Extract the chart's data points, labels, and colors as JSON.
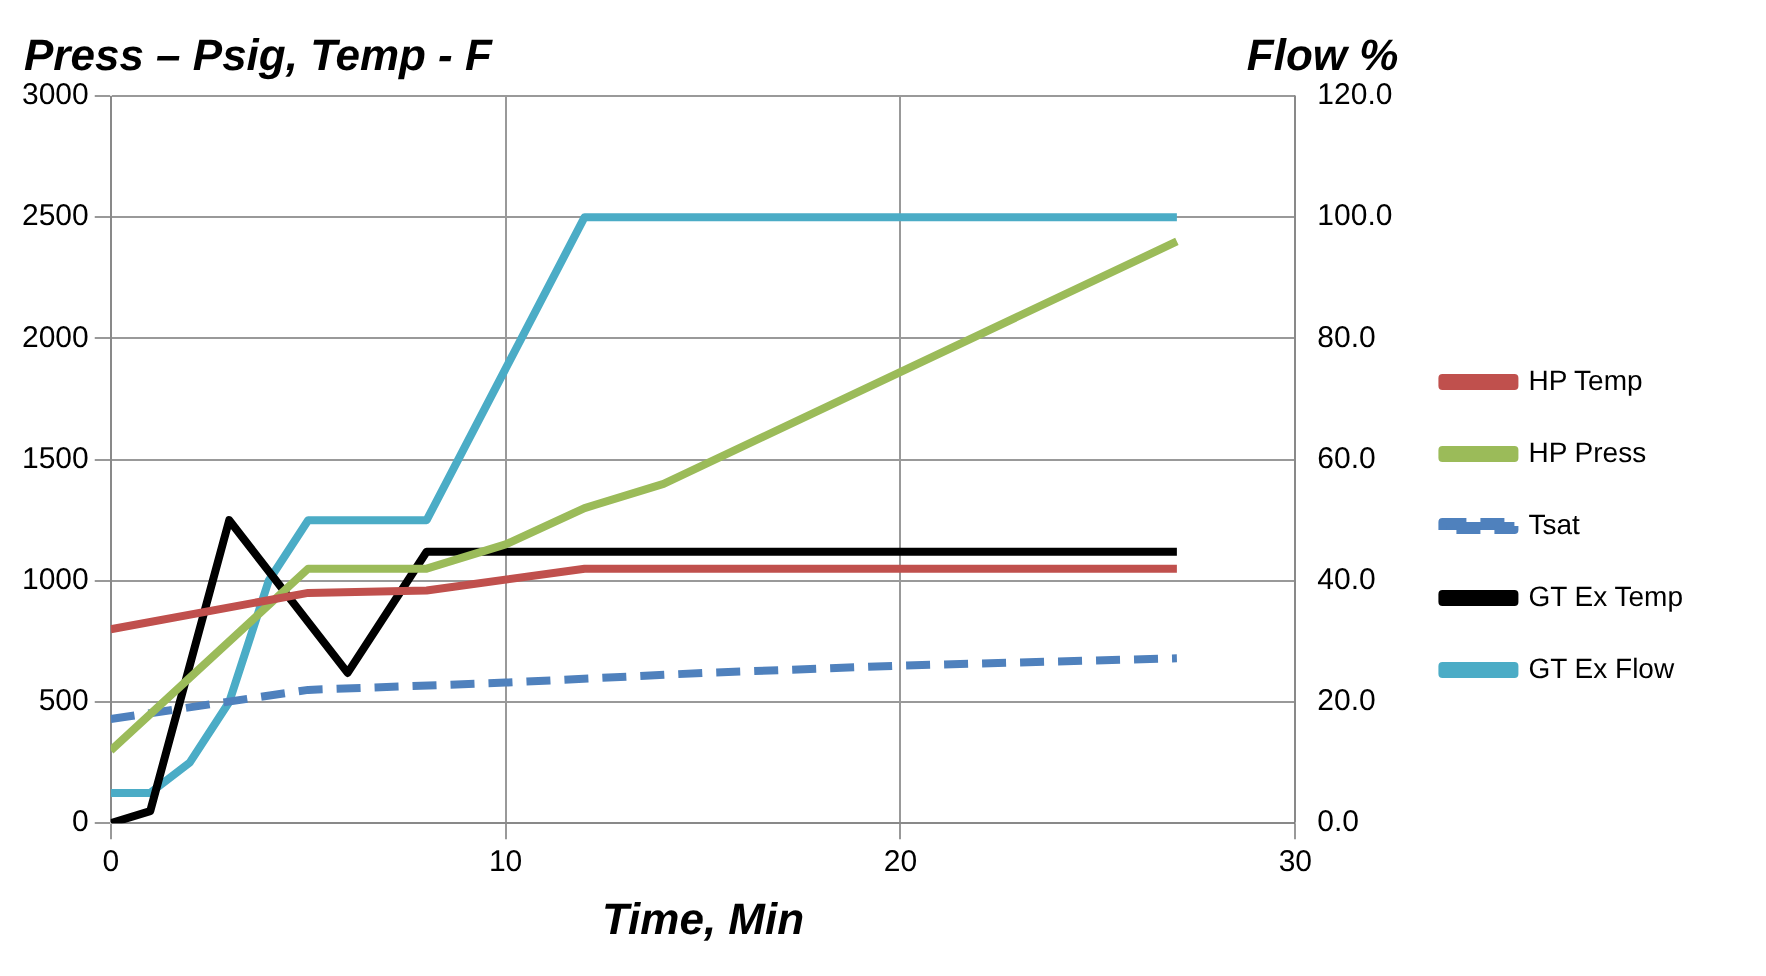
{
  "chart_data": {
    "type": "line",
    "xlabel": "Time, Min",
    "ylabel": "Press – Psig, Temp - F",
    "y2label": "Flow %",
    "xlim": [
      0,
      30
    ],
    "xticks": [
      0,
      10,
      20,
      30
    ],
    "ylim": [
      0,
      3000
    ],
    "yticks": [
      0,
      500,
      1000,
      1500,
      2000,
      2500,
      3000
    ],
    "y2lim": [
      0,
      120
    ],
    "y2ticks": [
      {
        "value": 0,
        "label": "0.0"
      },
      {
        "value": 20,
        "label": "20.0"
      },
      {
        "value": 40,
        "label": "40.0"
      },
      {
        "value": 60,
        "label": "60.0"
      },
      {
        "value": 80,
        "label": "80.0"
      },
      {
        "value": 100,
        "label": "100.0"
      },
      {
        "value": 120,
        "label": "120.0"
      }
    ],
    "grid": true,
    "legend": "right",
    "marker": "none",
    "series": [
      {
        "name": "HP Temp",
        "color": "#c0504d",
        "x": [
          0,
          5,
          8,
          12,
          27
        ],
        "values": [
          800,
          950,
          960,
          1050,
          1050
        ]
      },
      {
        "name": "HP Press",
        "color": "#9bbb59",
        "x": [
          0,
          5,
          8,
          10,
          12,
          14,
          27
        ],
        "values": [
          300,
          1050,
          1050,
          1150,
          1300,
          1400,
          2400
        ]
      },
      {
        "name": "Tsat",
        "color": "#4f81bd",
        "line_style": "dashed",
        "x": [
          0,
          5,
          10,
          15,
          20,
          27
        ],
        "values": [
          430,
          550,
          580,
          620,
          650,
          680
        ]
      },
      {
        "name": "GT Ex Temp",
        "color": "#000000",
        "x": [
          0,
          1,
          2,
          3,
          6,
          8,
          27
        ],
        "values": [
          0,
          50,
          650,
          1250,
          620,
          1120,
          1120
        ]
      },
      {
        "name": "GT Ex Flow",
        "color": "#4bacc6",
        "axis": "y2",
        "x": [
          0,
          1,
          2,
          3,
          4,
          5,
          8,
          12,
          27
        ],
        "values": [
          5,
          5,
          10,
          20,
          40,
          50,
          50,
          100,
          100
        ]
      }
    ]
  }
}
